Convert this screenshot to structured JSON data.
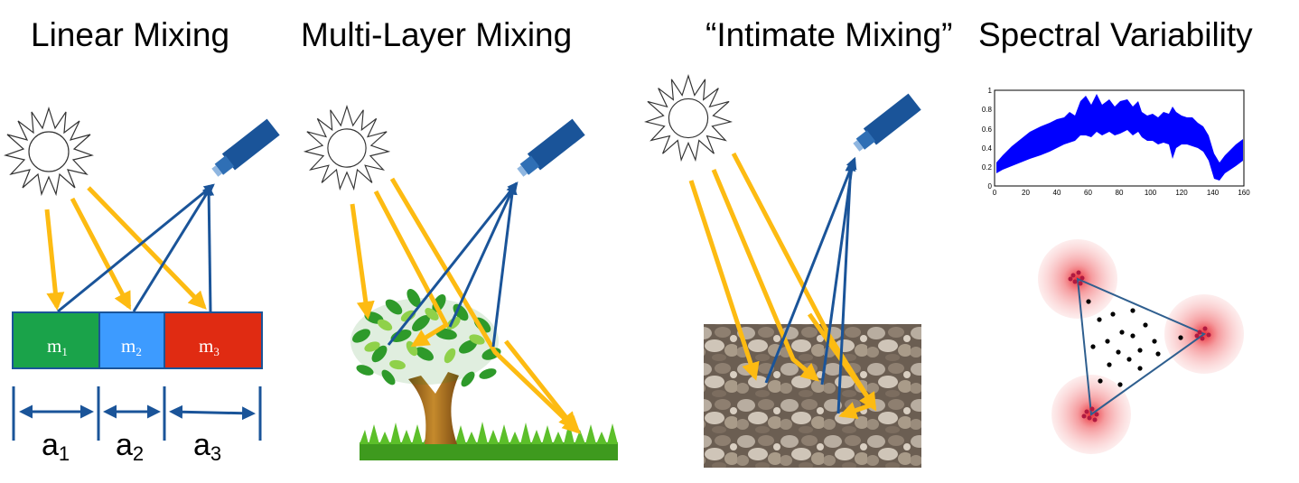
{
  "panels": {
    "linear": {
      "title": "Linear Mixing",
      "endmembers": [
        {
          "base": "m",
          "sub": "1",
          "color": "#1aa34a"
        },
        {
          "base": "m",
          "sub": "2",
          "color": "#3d9bff"
        },
        {
          "base": "m",
          "sub": "3",
          "color": "#e02b12"
        }
      ],
      "abundances": [
        {
          "base": "a",
          "sub": "1"
        },
        {
          "base": "a",
          "sub": "2"
        },
        {
          "base": "a",
          "sub": "3"
        }
      ]
    },
    "multilayer": {
      "title": "Multi-Layer Mixing"
    },
    "intimate": {
      "title": "“Intimate Mixing”"
    },
    "variability": {
      "title": "Spectral Variability",
      "plot": {
        "x_ticks": [
          "0",
          "20",
          "40",
          "60",
          "80",
          "100",
          "120",
          "140",
          "160"
        ],
        "y_ticks": [
          "0",
          "0.2",
          "0.4",
          "0.6",
          "0.8",
          "1"
        ]
      }
    }
  },
  "colors": {
    "sunlight": "#fdbb12",
    "reflection": "#1a5499",
    "sensor": "#1a5499",
    "spectra": "#0000ff",
    "cluster": "#e8202a"
  },
  "icons": [
    "sun-icon",
    "sensor-icon",
    "tree-icon",
    "grass-icon",
    "pebbles-icon"
  ]
}
